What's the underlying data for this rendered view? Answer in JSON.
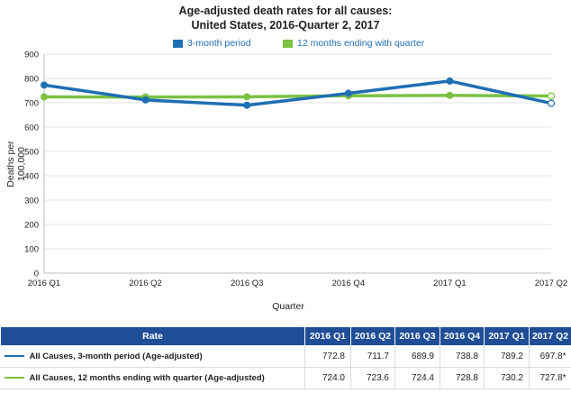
{
  "chart_data": {
    "type": "line",
    "title": "Age-adjusted death rates for all causes:",
    "subtitle": "United States, 2016-Quarter 2, 2017",
    "xlabel": "Quarter",
    "ylabel": "Deaths per 100,000",
    "ylim": [
      0,
      900
    ],
    "yticks": [
      0,
      100,
      200,
      300,
      400,
      500,
      600,
      700,
      800,
      900
    ],
    "categories": [
      "2016 Q1",
      "2016 Q2",
      "2016 Q3",
      "2016 Q4",
      "2017 Q1",
      "2017 Q2"
    ],
    "legend_position": "top",
    "grid": true,
    "series": [
      {
        "name": "3-month period",
        "color": "#1f6fb4",
        "values": [
          772.8,
          711.7,
          689.9,
          738.8,
          789.2,
          697.8
        ],
        "last_point_open": true
      },
      {
        "name": "12 months ending with quarter",
        "color": "#7bc142",
        "values": [
          724.0,
          723.6,
          724.4,
          728.8,
          730.2,
          727.8
        ],
        "last_point_open": true
      }
    ]
  },
  "table": {
    "header_rate": "Rate",
    "columns": [
      "2016 Q1",
      "2016 Q2",
      "2016 Q3",
      "2016 Q4",
      "2017 Q1",
      "2017 Q2"
    ],
    "rows": [
      {
        "label": "All Causes, 3-month period (Age-adjusted)",
        "color": "#1f6fb4",
        "cells": [
          "772.8",
          "711.7",
          "689.9",
          "738.8",
          "789.2",
          "697.8*"
        ]
      },
      {
        "label": "All Causes, 12 months ending with quarter (Age-adjusted)",
        "color": "#7bc142",
        "cells": [
          "724.0",
          "723.6",
          "724.4",
          "728.8",
          "730.2",
          "727.8*"
        ]
      }
    ]
  }
}
